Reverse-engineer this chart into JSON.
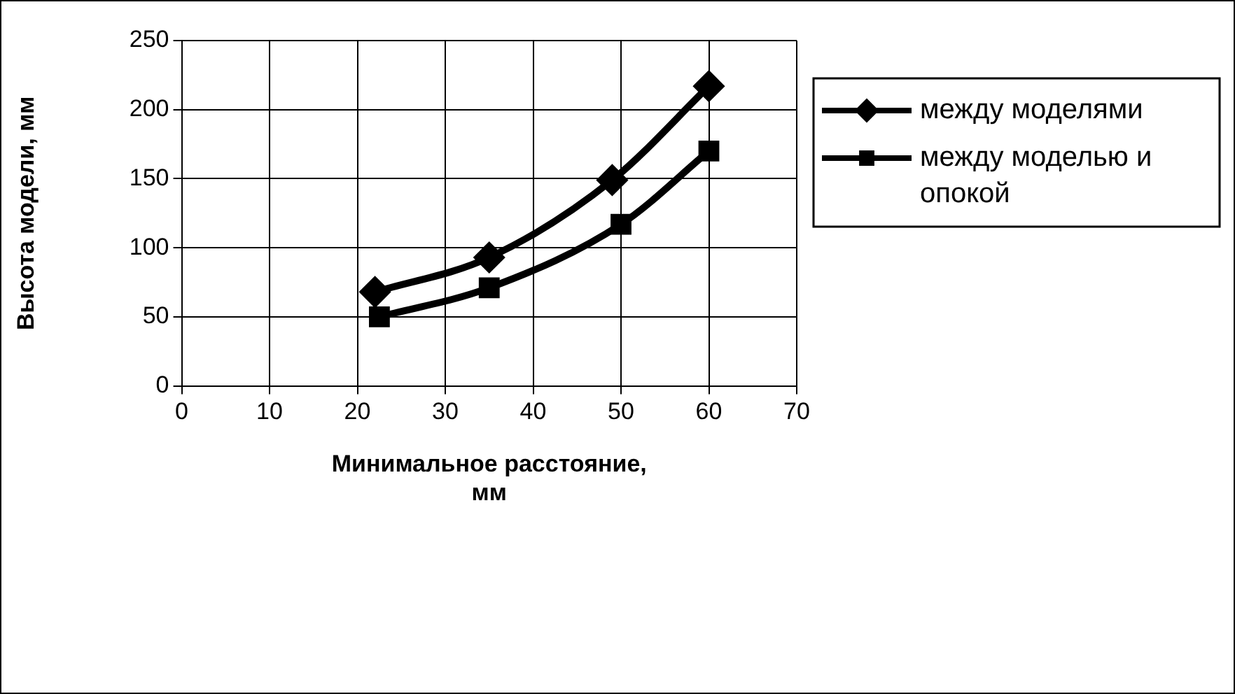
{
  "chart_data": {
    "type": "line",
    "xlabel": "Минимальное расстояние, мм",
    "ylabel": "Высота модели, мм",
    "series": [
      {
        "name": "между моделями",
        "color": "#000000",
        "marker": "diamond",
        "x": [
          22,
          35,
          49,
          60
        ],
        "values": [
          68,
          93,
          149,
          217
        ]
      },
      {
        "name": "между моделью и опокой",
        "color": "#000000",
        "marker": "square",
        "x": [
          22.5,
          35,
          50,
          60
        ],
        "values": [
          50,
          71,
          117,
          170
        ]
      }
    ],
    "xlim": [
      0,
      70
    ],
    "xticks": [
      0,
      10,
      20,
      30,
      40,
      50,
      60,
      70
    ],
    "ylim": [
      0,
      250
    ],
    "yticks": [
      0,
      50,
      100,
      150,
      200,
      250
    ],
    "grid": true,
    "legend": "right"
  }
}
